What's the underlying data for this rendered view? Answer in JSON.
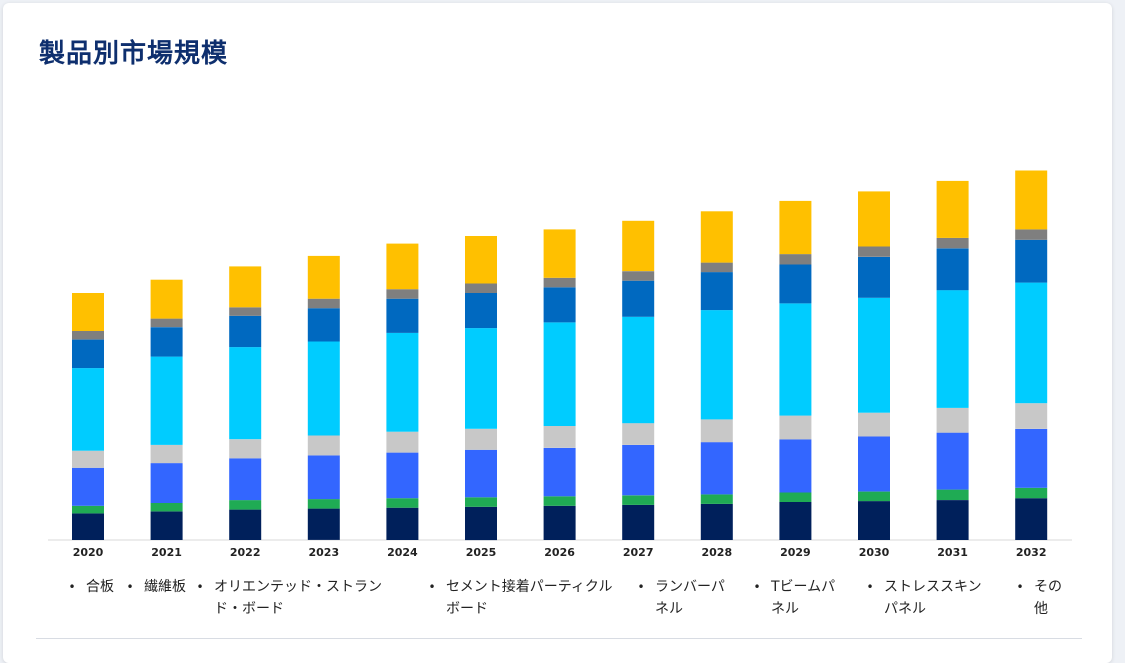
{
  "page": {
    "title": "製品別市場規模"
  },
  "legend": [
    {
      "name": "合板",
      "color": "#00205b"
    },
    {
      "name": "繊維板",
      "color": "#1fab54"
    },
    {
      "name": "オリエンテッド・ストランド・ボード",
      "color": "#3366ff"
    },
    {
      "name": "セメント接着パーティクルボード",
      "color": "#c8c8c8"
    },
    {
      "name": "ランバーパネル",
      "color": "#00ccff"
    },
    {
      "name": "Tビームパネル",
      "color": "#0069c0"
    },
    {
      "name": "ストレススキンパネル",
      "color": "#7f7f7f"
    },
    {
      "name": "その他",
      "color": "#ffc000"
    }
  ],
  "chart_data": {
    "type": "bar",
    "stacked": true,
    "title": "",
    "xlabel": "",
    "ylabel": "",
    "grid": false,
    "legend_position": "bottom",
    "categories": [
      "2020",
      "2021",
      "2022",
      "2023",
      "2024",
      "2025",
      "2026",
      "2027",
      "2028",
      "2029",
      "2030",
      "2031",
      "2032"
    ],
    "series": [
      {
        "name": "合板",
        "color": "#00205b",
        "values": [
          28,
          30,
          32,
          33,
          34,
          35,
          36,
          37,
          38,
          40,
          41,
          42,
          44
        ]
      },
      {
        "name": "繊維板",
        "color": "#1fab54",
        "values": [
          8,
          9,
          10,
          10,
          10,
          10,
          10,
          10,
          10,
          10,
          10,
          11,
          11
        ]
      },
      {
        "name": "オリエンテッド・ストランド・ボード",
        "color": "#3366ff",
        "values": [
          40,
          42,
          44,
          46,
          48,
          50,
          51,
          53,
          55,
          56,
          58,
          60,
          62
        ]
      },
      {
        "name": "セメント接着パーティクルボード",
        "color": "#c8c8c8",
        "values": [
          18,
          19,
          20,
          21,
          22,
          22,
          23,
          23,
          24,
          25,
          25,
          26,
          27
        ]
      },
      {
        "name": "ランバーパネル",
        "color": "#00ccff",
        "values": [
          87,
          93,
          97,
          99,
          104,
          106,
          109,
          112,
          115,
          118,
          121,
          124,
          127
        ]
      },
      {
        "name": "Tビームパネル",
        "color": "#0069c0",
        "values": [
          30,
          31,
          33,
          35,
          36,
          37,
          37,
          38,
          40,
          41,
          43,
          44,
          45
        ]
      },
      {
        "name": "ストレススキンパネル",
        "color": "#7f7f7f",
        "values": [
          9,
          9,
          9,
          10,
          10,
          10,
          10,
          10,
          10,
          11,
          11,
          11,
          11
        ]
      },
      {
        "name": "その他",
        "color": "#ffc000",
        "values": [
          40,
          41,
          43,
          45,
          48,
          50,
          51,
          53,
          54,
          56,
          58,
          60,
          62
        ]
      }
    ],
    "ylim": [
      0,
      400
    ]
  }
}
